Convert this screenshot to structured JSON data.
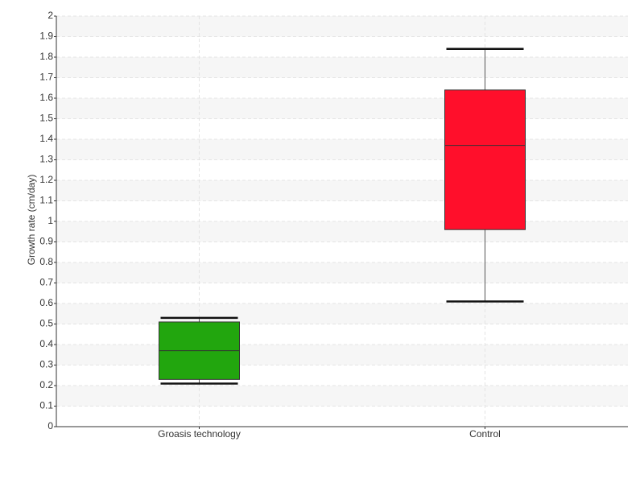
{
  "chart_data": {
    "type": "box",
    "ylabel": "Growth rate (cm/day)",
    "categories": [
      "Groasis technology",
      "Control"
    ],
    "boxes": [
      {
        "min": 0.21,
        "q1": 0.23,
        "median": 0.37,
        "q3": 0.51,
        "max": 0.53,
        "color": "#22a60e"
      },
      {
        "min": 0.61,
        "q1": 0.96,
        "median": 1.37,
        "q3": 1.64,
        "max": 1.84,
        "color": "#ff0f2b"
      }
    ],
    "ylim": [
      0,
      2
    ],
    "yticks": [
      0,
      0.1,
      0.2,
      0.3,
      0.4,
      0.5,
      0.6,
      0.7,
      0.8,
      0.9,
      1,
      1.1,
      1.2,
      1.3,
      1.4,
      1.5,
      1.6,
      1.7,
      1.8,
      1.9,
      2
    ],
    "grid": true
  }
}
